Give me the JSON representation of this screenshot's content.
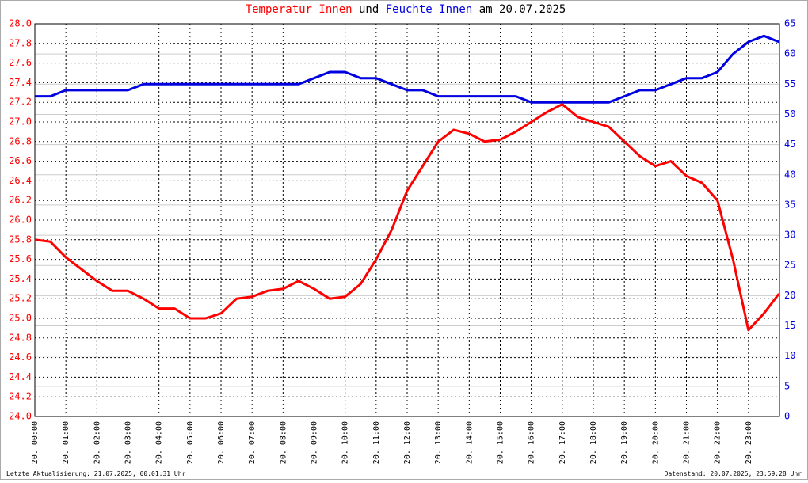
{
  "chart_data": {
    "type": "line",
    "title_join": "und",
    "title_suffix": "am 20.07.2025",
    "footer_left": "Letzte Aktualisierung: 21.07.2025, 00:01:31 Uhr",
    "footer_right": "Datenstand: 20.07.2025, 23:59:28 Uhr",
    "x": [
      "20.07.2025 00:00",
      "20.07.2025 00:30",
      "20.07.2025 01:00",
      "20.07.2025 01:30",
      "20.07.2025 02:00",
      "20.07.2025 02:30",
      "20.07.2025 03:00",
      "20.07.2025 03:30",
      "20.07.2025 04:00",
      "20.07.2025 04:30",
      "20.07.2025 05:00",
      "20.07.2025 05:30",
      "20.07.2025 06:00",
      "20.07.2025 06:30",
      "20.07.2025 07:00",
      "20.07.2025 07:30",
      "20.07.2025 08:00",
      "20.07.2025 08:30",
      "20.07.2025 09:00",
      "20.07.2025 09:30",
      "20.07.2025 10:00",
      "20.07.2025 10:30",
      "20.07.2025 11:00",
      "20.07.2025 11:30",
      "20.07.2025 12:00",
      "20.07.2025 12:30",
      "20.07.2025 13:00",
      "20.07.2025 13:30",
      "20.07.2025 14:00",
      "20.07.2025 14:30",
      "20.07.2025 15:00",
      "20.07.2025 15:30",
      "20.07.2025 16:00",
      "20.07.2025 16:30",
      "20.07.2025 17:00",
      "20.07.2025 17:30",
      "20.07.2025 18:00",
      "20.07.2025 18:30",
      "20.07.2025 19:00",
      "20.07.2025 19:30",
      "20.07.2025 20:00",
      "20.07.2025 20:30",
      "20.07.2025 21:00",
      "20.07.2025 21:30",
      "20.07.2025 22:00",
      "20.07.2025 22:30",
      "20.07.2025 23:00",
      "20.07.2025 23:30",
      "20.07.2025 23:59"
    ],
    "xlim": [
      "20.07.2025 00:00",
      "20.07.2025 24:00"
    ],
    "xticks": [
      {
        "value": "20.07.2025 00:00",
        "label": "20. 00:00"
      },
      {
        "value": "20.07.2025 01:00",
        "label": "20. 01:00"
      },
      {
        "value": "20.07.2025 02:00",
        "label": "20. 02:00"
      },
      {
        "value": "20.07.2025 03:00",
        "label": "20. 03:00"
      },
      {
        "value": "20.07.2025 04:00",
        "label": "20. 04:00"
      },
      {
        "value": "20.07.2025 05:00",
        "label": "20. 05:00"
      },
      {
        "value": "20.07.2025 06:00",
        "label": "20. 06:00"
      },
      {
        "value": "20.07.2025 07:00",
        "label": "20. 07:00"
      },
      {
        "value": "20.07.2025 08:00",
        "label": "20. 08:00"
      },
      {
        "value": "20.07.2025 09:00",
        "label": "20. 09:00"
      },
      {
        "value": "20.07.2025 10:00",
        "label": "20. 10:00"
      },
      {
        "value": "20.07.2025 11:00",
        "label": "20. 11:00"
      },
      {
        "value": "20.07.2025 12:00",
        "label": "20. 12:00"
      },
      {
        "value": "20.07.2025 13:00",
        "label": "20. 13:00"
      },
      {
        "value": "20.07.2025 14:00",
        "label": "20. 14:00"
      },
      {
        "value": "20.07.2025 15:00",
        "label": "20. 15:00"
      },
      {
        "value": "20.07.2025 16:00",
        "label": "20. 16:00"
      },
      {
        "value": "20.07.2025 17:00",
        "label": "20. 17:00"
      },
      {
        "value": "20.07.2025 18:00",
        "label": "20. 18:00"
      },
      {
        "value": "20.07.2025 19:00",
        "label": "20. 19:00"
      },
      {
        "value": "20.07.2025 20:00",
        "label": "20. 20:00"
      },
      {
        "value": "20.07.2025 21:00",
        "label": "20. 21:00"
      },
      {
        "value": "20.07.2025 22:00",
        "label": "20. 22:00"
      },
      {
        "value": "20.07.2025 23:00",
        "label": "20. 23:00"
      }
    ],
    "ylim": [
      24,
      28
    ],
    "yticks": [
      {
        "value": 24,
        "label": "24.0"
      },
      24.2,
      24.4,
      24.6,
      24.8,
      {
        "value": 25,
        "label": "25.0"
      },
      25.2,
      25.4,
      25.6,
      25.8,
      {
        "value": 26,
        "label": "26.0"
      },
      26.2,
      26.4,
      26.6,
      26.8,
      {
        "value": 27,
        "label": "27.0"
      },
      27.2,
      27.4,
      27.6,
      27.8,
      {
        "value": 28,
        "label": "28.0"
      }
    ],
    "y2lim": [
      0,
      65
    ],
    "y2ticks": [
      0,
      5,
      10,
      15,
      20,
      25,
      30,
      35,
      40,
      45,
      50,
      55,
      60,
      65
    ],
    "grid": true,
    "series": [
      {
        "name": "Temperatur Innen",
        "color": "#ff0000",
        "axis": "y",
        "values": [
          25.8,
          25.78,
          25.62,
          25.5,
          25.38,
          25.28,
          25.28,
          25.2,
          25.1,
          25.1,
          25.0,
          25.0,
          25.05,
          25.2,
          25.22,
          25.28,
          25.3,
          25.38,
          25.3,
          25.2,
          25.22,
          25.35,
          25.6,
          25.9,
          26.3,
          26.55,
          26.8,
          26.92,
          26.88,
          26.8,
          26.82,
          26.9,
          27.0,
          27.1,
          27.18,
          27.05,
          27.0,
          26.95,
          26.8,
          26.65,
          26.55,
          26.6,
          26.45,
          26.38,
          26.2,
          25.6,
          24.88,
          25.05,
          25.25
        ]
      },
      {
        "name": "Feuchte Innen",
        "color": "#0000e0",
        "axis": "y2",
        "values": [
          53,
          53,
          54,
          54,
          54,
          54,
          54,
          55,
          55,
          55,
          55,
          55,
          55,
          55,
          55,
          55,
          55,
          55,
          56,
          57,
          57,
          56,
          56,
          55,
          54,
          54,
          53,
          53,
          53,
          53,
          53,
          53,
          52,
          52,
          52,
          52,
          52,
          52,
          53,
          54,
          54,
          55,
          56,
          56,
          57,
          60,
          62,
          63,
          62
        ]
      }
    ]
  }
}
